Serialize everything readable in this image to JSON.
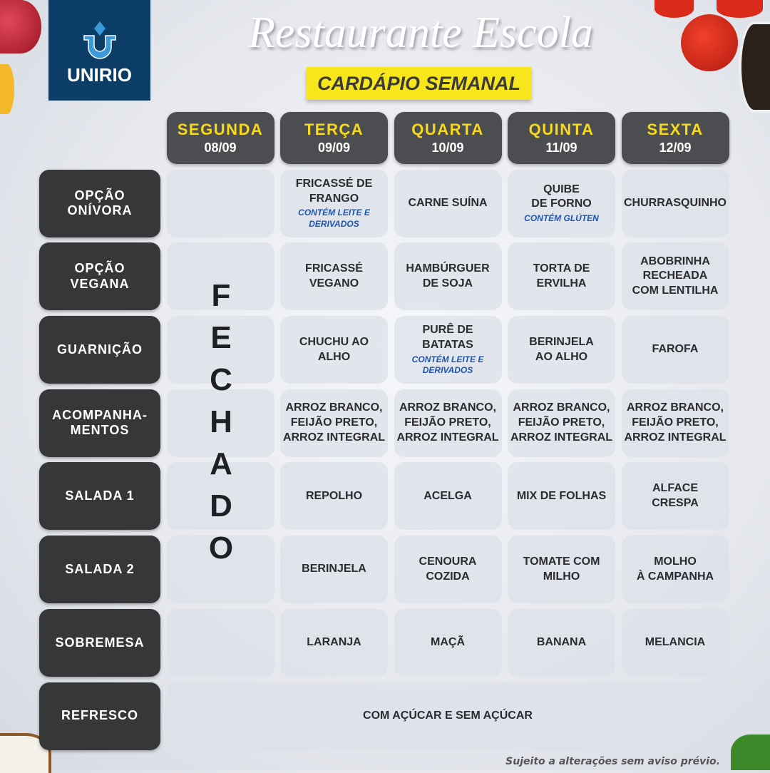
{
  "logo": {
    "text": "UNIRIO",
    "brand_color": "#0c3d66"
  },
  "header": {
    "title": "Restaurante Escola",
    "subtitle": "CARDÁPIO SEMANAL",
    "subtitle_bg": "#f8e61c"
  },
  "days": [
    {
      "name": "SEGUNDA",
      "date": "08/09"
    },
    {
      "name": "TERÇA",
      "date": "09/09"
    },
    {
      "name": "QUARTA",
      "date": "10/09"
    },
    {
      "name": "QUINTA",
      "date": "11/09"
    },
    {
      "name": "SEXTA",
      "date": "12/09"
    }
  ],
  "closed_text": "FECHADO",
  "rows": [
    {
      "label": "OPÇÃO\nONÍVORA",
      "cells": [
        {
          "m": "FRICASSÉ DE\nFRANGO",
          "n": "CONTÉM LEITE E\nDERIVADOS"
        },
        {
          "m": "CARNE SUÍNA"
        },
        {
          "m": "QUIBE\nDE FORNO",
          "n": "CONTÉM GLÚTEN"
        },
        {
          "m": "CHURRASQUINHO"
        }
      ]
    },
    {
      "label": "OPÇÃO\nVEGANA",
      "cells": [
        {
          "m": "FRICASSÉ\nVEGANO"
        },
        {
          "m": "HAMBÚRGUER\nDE SOJA"
        },
        {
          "m": "TORTA DE\nERVILHA"
        },
        {
          "m": "ABOBRINHA\nRECHEADA\nCOM LENTILHA"
        }
      ]
    },
    {
      "label": "GUARNIÇÃO",
      "cells": [
        {
          "m": "CHUCHU AO\nALHO"
        },
        {
          "m": "PURÊ DE\nBATATAS",
          "n": "CONTÉM LEITE E\nDERIVADOS"
        },
        {
          "m": "BERINJELA\nAO ALHO"
        },
        {
          "m": "FAROFA"
        }
      ]
    },
    {
      "label": "ACOMPANHA-\nMENTOS",
      "cells": [
        {
          "m": "ARROZ BRANCO,\nFEIJÃO PRETO,\nARROZ INTEGRAL"
        },
        {
          "m": "ARROZ BRANCO,\nFEIJÃO PRETO,\nARROZ INTEGRAL"
        },
        {
          "m": "ARROZ BRANCO,\nFEIJÃO PRETO,\nARROZ INTEGRAL"
        },
        {
          "m": "ARROZ BRANCO,\nFEIJÃO PRETO,\nARROZ INTEGRAL"
        }
      ]
    },
    {
      "label": "SALADA 1",
      "cells": [
        {
          "m": "REPOLHO"
        },
        {
          "m": "ACELGA"
        },
        {
          "m": "MIX DE FOLHAS"
        },
        {
          "m": "ALFACE\nCRESPA"
        }
      ]
    },
    {
      "label": "SALADA 2",
      "cells": [
        {
          "m": "BERINJELA"
        },
        {
          "m": "CENOURA\nCOZIDA"
        },
        {
          "m": "TOMATE COM\nMILHO"
        },
        {
          "m": "MOLHO\nÀ CAMPANHA"
        }
      ]
    },
    {
      "label": "SOBREMESA",
      "cells": [
        {
          "m": "LARANJA"
        },
        {
          "m": "MAÇÃ"
        },
        {
          "m": "BANANA"
        },
        {
          "m": "MELANCIA"
        }
      ]
    }
  ],
  "refresco": {
    "label": "REFRESCO",
    "value": "COM AÇÚCAR E SEM AÇÚCAR"
  },
  "footer_note": "Sujeito a alterações sem aviso prévio."
}
